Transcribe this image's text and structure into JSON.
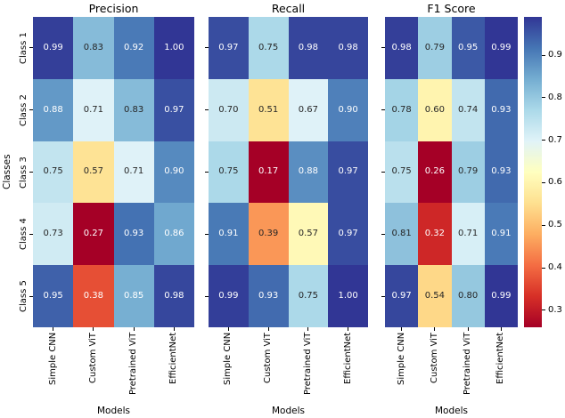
{
  "figure": {
    "background": "#ffffff",
    "xlabel": "Models",
    "ylabel": "Classes",
    "annotation_text_dark": "#262626",
    "annotation_text_light": "#ffffff",
    "tick_color": "#000000"
  },
  "colormap": {
    "name": "RdYlBu",
    "stops": [
      "#a50026",
      "#d73027",
      "#f46d43",
      "#fdae61",
      "#fee090",
      "#ffffbf",
      "#e0f3f8",
      "#abd9e9",
      "#74add1",
      "#4575b4",
      "#313695"
    ]
  },
  "chart_data": [
    {
      "type": "heatmap",
      "title": "Precision",
      "xlabel": "Models",
      "ylabel": "Classes",
      "x": [
        "Simple CNN",
        "Custom ViT",
        "Pretrained ViT",
        "EfficientNet"
      ],
      "y": [
        "Class 1",
        "Class 2",
        "Class 3",
        "Class 4",
        "Class 5"
      ],
      "values": [
        [
          0.99,
          0.83,
          0.92,
          1.0
        ],
        [
          0.88,
          0.71,
          0.83,
          0.97
        ],
        [
          0.75,
          0.57,
          0.71,
          0.9
        ],
        [
          0.73,
          0.27,
          0.93,
          0.86
        ],
        [
          0.95,
          0.38,
          0.85,
          0.98
        ]
      ],
      "vmin": 0.27,
      "vmax": 1.0,
      "annot_format": "2-decimals"
    },
    {
      "type": "heatmap",
      "title": "Recall",
      "xlabel": "Models",
      "ylabel": "",
      "x": [
        "Simple CNN",
        "Custom ViT",
        "Pretrained ViT",
        "EfficientNet"
      ],
      "y": [
        "Class 1",
        "Class 2",
        "Class 3",
        "Class 4",
        "Class 5"
      ],
      "values": [
        [
          0.97,
          0.75,
          0.98,
          0.98
        ],
        [
          0.7,
          0.51,
          0.67,
          0.9
        ],
        [
          0.75,
          0.17,
          0.88,
          0.97
        ],
        [
          0.91,
          0.39,
          0.57,
          0.97
        ],
        [
          0.99,
          0.93,
          0.75,
          1.0
        ]
      ],
      "vmin": 0.17,
      "vmax": 1.0,
      "annot_format": "2-decimals"
    },
    {
      "type": "heatmap",
      "title": "F1 Score",
      "xlabel": "Models",
      "ylabel": "",
      "x": [
        "Simple CNN",
        "Custom ViT",
        "Pretrained ViT",
        "EfficientNet"
      ],
      "y": [
        "Class 1",
        "Class 2",
        "Class 3",
        "Class 4",
        "Class 5"
      ],
      "values": [
        [
          0.98,
          0.79,
          0.95,
          0.99
        ],
        [
          0.78,
          0.6,
          0.74,
          0.93
        ],
        [
          0.75,
          0.26,
          0.79,
          0.93
        ],
        [
          0.81,
          0.32,
          0.71,
          0.91
        ],
        [
          0.97,
          0.54,
          0.8,
          0.99
        ]
      ],
      "vmin": 0.26,
      "vmax": 0.99,
      "annot_format": "2-decimals",
      "colorbar": {
        "position": "right",
        "ticks": [
          0.3,
          0.4,
          0.5,
          0.6,
          0.7,
          0.8,
          0.9
        ]
      }
    }
  ]
}
